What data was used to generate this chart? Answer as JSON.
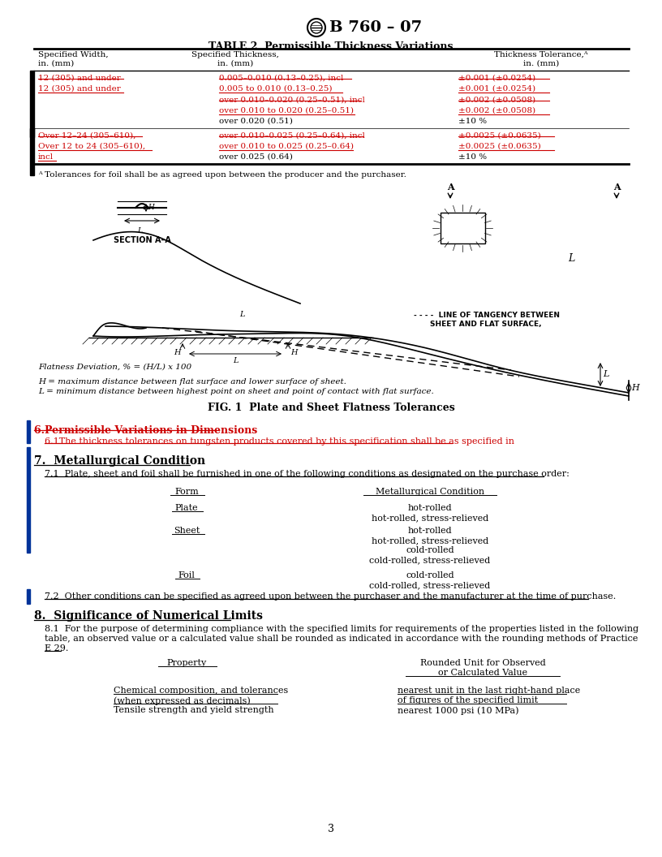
{
  "title": "B 760 – 07",
  "table_title": "TABLE 2  Permissible Thickness Variations",
  "footnote": "ᴬ Tolerances for foil shall be as agreed upon between the producer and the purchaser.",
  "fig_caption": "FIG. 1  Plate and Sheet Flatness Tolerances",
  "flatness_eq": "Flatness Deviation, % = (H/L) x 100",
  "flatness_note1": "H = maximum distance between flat surface and lower surface of sheet.",
  "flatness_note2": "L = minimum distance between highest point on sheet and point of contact with flat surface.",
  "section6_title": "6.Permissible Variations in Dimensions",
  "section6_text": "6.1The thickness tolerances on tungsten products covered by this specification shall be as specified in",
  "section7_title": "7.  Metallurgical Condition",
  "section7_text": "7.1  Plate, sheet and foil shall be furnished in one of the following conditions as designated on the purchase order:",
  "section7_2": "7.2  Other conditions can be specified as agreed upon between the purchaser and the manufacturer at the time of purchase.",
  "section8_title": "8.  Significance of Numerical Limits",
  "section8_line1": "8.1  For the purpose of determining compliance with the specified limits for requirements of the properties listed in the following",
  "section8_line2": "table, an observed value or a calculated value shall be rounded as indicated in accordance with the rounding methods of Practice",
  "section8_line3": "E 29.",
  "page_num": "3",
  "strike_color": "#cc0000",
  "black": "#000000",
  "bg_color": "#ffffff",
  "bar_color": "#000080"
}
